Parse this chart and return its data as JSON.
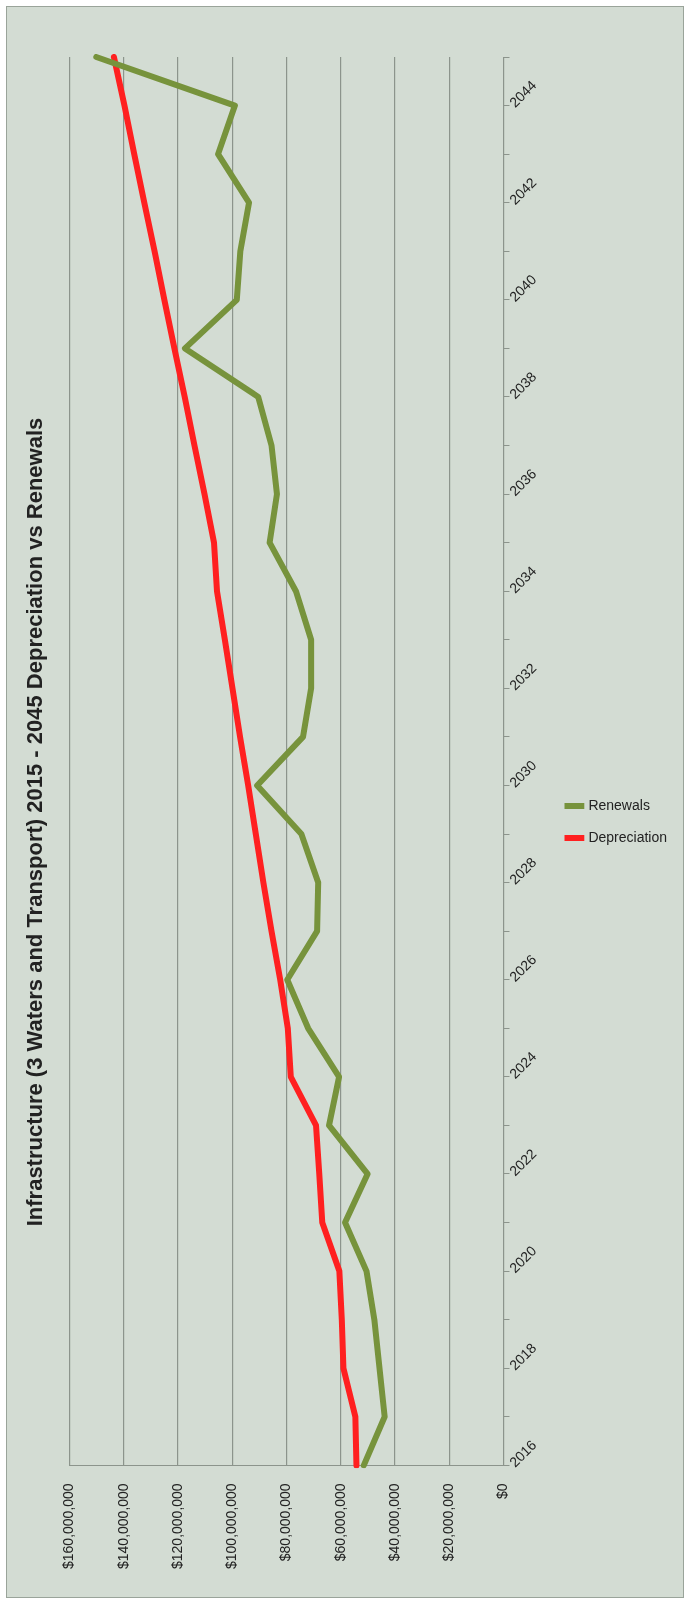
{
  "chart_data": {
    "type": "line",
    "orientation": "horizontal",
    "title": "Infrastructure (3 Waters and Transport) 2015 - 2045 Depreciation vs Renewals",
    "categories": [
      null,
      "2044",
      null,
      "2042",
      null,
      "2040",
      null,
      "2038",
      null,
      "2036",
      null,
      "2034",
      null,
      "2032",
      null,
      "2030",
      null,
      "2028",
      null,
      "2026",
      null,
      "2024",
      null,
      "2022",
      null,
      "2020",
      null,
      "2018",
      null,
      "2016"
    ],
    "series": [
      {
        "name": "Renewals",
        "color": "#77933c",
        "values": [
          150100000.0,
          99000000.0,
          105200000.0,
          93800000.0,
          97000000.0,
          98300000.0,
          117400000.0,
          90400000.0,
          85500000.0,
          83500000.0,
          86200000.0,
          76500000.0,
          70900000.0,
          70900000.0,
          73900000.0,
          90800000.0,
          74500000.0,
          68300000.0,
          68700000.0,
          79700000.0,
          72000000.0,
          60600000.0,
          64300000.0,
          50100000.0,
          58400000.0,
          50500000.0,
          47600000.0,
          45700000.0,
          43800000.0,
          51500000.0
        ]
      },
      {
        "name": "Depreciation",
        "color": "#ff2020",
        "values": [
          143600000.0,
          139700000.0,
          136100000.0,
          132400000.0,
          128600000.0,
          125000000.0,
          121300000.0,
          117500000.0,
          113900000.0,
          110200000.0,
          106700000.0,
          105600000.0,
          102700000.0,
          99900000.0,
          97100000.0,
          94100000.0,
          91300000.0,
          88500000.0,
          85500000.0,
          82300000.0,
          79500000.0,
          78400000.0,
          69100000.0,
          67900000.0,
          66800000.0,
          60500000.0,
          59600000.0,
          59000000.0,
          54600000.0,
          54200000.0
        ]
      }
    ],
    "xlim": [
      160000000,
      0
    ],
    "xticks": [
      {
        "value": 160000000,
        "label": "$160,000,000"
      },
      {
        "value": 140000000,
        "label": "$140,000,000"
      },
      {
        "value": 120000000,
        "label": "$120,000,000"
      },
      {
        "value": 100000000,
        "label": "$100,000,000"
      },
      {
        "value": 80000000,
        "label": "$80,000,000"
      },
      {
        "value": 60000000,
        "label": "$60,000,000"
      },
      {
        "value": 40000000,
        "label": "$40,000,000"
      },
      {
        "value": 20000000,
        "label": "$20,000,000"
      },
      {
        "value": 0,
        "label": "$0"
      }
    ],
    "grid": "x",
    "legend": "right",
    "marker": "none",
    "line_style": "solid"
  }
}
